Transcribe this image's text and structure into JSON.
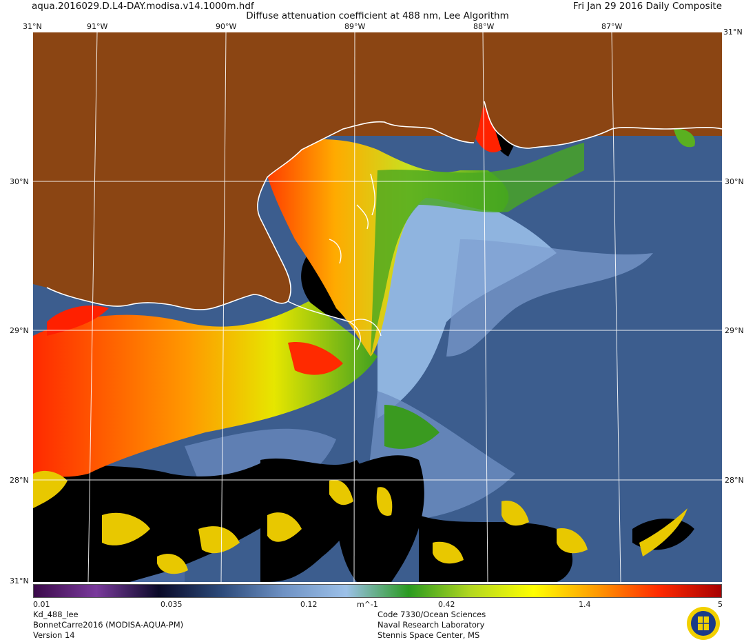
{
  "header": {
    "filename": "aqua.2016029.D.L4-DAY.modisa.v14.1000m.hdf",
    "title": "Diffuse attenuation coefficient at 488 nm, Lee Algorithm",
    "date": "Fri Jan 29 2016 Daily Composite"
  },
  "axes": {
    "top_lons": [
      "91°W",
      "90°W",
      "89°W",
      "88°W",
      "87°W"
    ],
    "lats": [
      "30°N",
      "29°N",
      "28°N"
    ],
    "corner_lat_top": "31°N",
    "corner_lat_bottom": "31°N"
  },
  "colorbar": {
    "ticks": [
      "0.01",
      "0.035",
      "0.12",
      "0.42",
      "1.4",
      "5"
    ],
    "unit": "m^-1",
    "colors": [
      "#3b0a4a",
      "#7a3a9c",
      "#0a0a28",
      "#2c4a7a",
      "#6f92c4",
      "#9cc0e8",
      "#2a9a20",
      "#b4d820",
      "#ffff00",
      "#ff9a00",
      "#ff2a00",
      "#a80000"
    ]
  },
  "footer": {
    "left": [
      "Kd_488_lee",
      "BonnetCarre2016 (MODISA-AQUA-PM)",
      "Version 14"
    ],
    "right": [
      "Code 7330/Ocean Sciences",
      "Naval Research Laboratory",
      "Stennis Space Center, MS"
    ]
  },
  "palette": {
    "land": "#8b4513",
    "coastline": "#ffffff",
    "gridline": "#ffffff"
  }
}
